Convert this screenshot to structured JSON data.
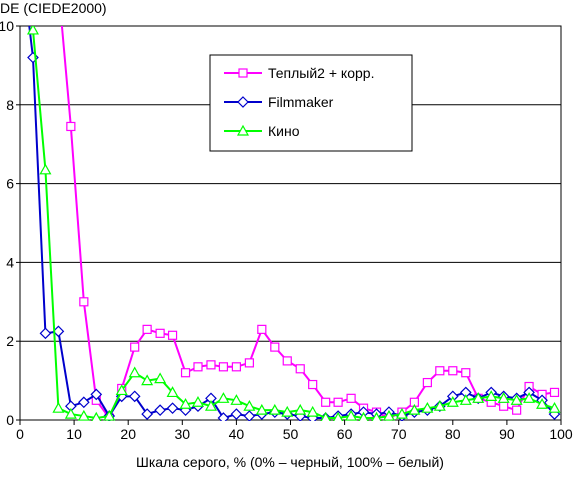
{
  "chart_data": {
    "type": "line",
    "title": "DE (CIEDE2000)",
    "xlabel": "Шкала серого, % (0% – черный, 100% – белый)",
    "ylabel": "",
    "xlim": [
      0,
      100
    ],
    "ylim": [
      0,
      10
    ],
    "xticks": [
      "0",
      "10",
      "20",
      "30",
      "40",
      "50",
      "60",
      "70",
      "80",
      "90",
      "100"
    ],
    "yticks": [
      "0",
      "2",
      "4",
      "6",
      "8",
      "10"
    ],
    "grid": "horizontal",
    "legend_position": "top-right",
    "series": [
      {
        "name": "Теплый2 + корр.",
        "color": "#ff00ff",
        "marker": "square",
        "x": [
          4.7,
          7.1,
          9.4,
          11.8,
          14.1,
          16.5,
          18.8,
          21.2,
          23.5,
          25.9,
          28.2,
          30.6,
          32.9,
          35.3,
          37.6,
          40.0,
          42.4,
          44.7,
          47.1,
          49.4,
          51.8,
          54.1,
          56.5,
          58.8,
          61.2,
          63.5,
          65.9,
          68.2,
          70.6,
          72.9,
          75.3,
          77.6,
          80.0,
          82.4,
          84.7,
          87.1,
          89.4,
          91.8,
          94.1,
          96.5,
          98.8
        ],
        "y": [
          14.0,
          11.0,
          7.45,
          3.0,
          0.5,
          0.05,
          0.8,
          1.85,
          2.3,
          2.2,
          2.15,
          1.2,
          1.35,
          1.4,
          1.35,
          1.35,
          1.45,
          2.3,
          1.85,
          1.5,
          1.3,
          0.9,
          0.45,
          0.45,
          0.55,
          0.3,
          0.2,
          0.05,
          0.2,
          0.45,
          0.95,
          1.25,
          1.25,
          1.2,
          0.55,
          0.45,
          0.35,
          0.25,
          0.85,
          0.65,
          0.7
        ]
      },
      {
        "name": "Filmmaker",
        "color": "#0000cc",
        "marker": "diamond",
        "x": [
          0.0,
          2.4,
          4.7,
          7.1,
          9.4,
          11.8,
          14.1,
          16.5,
          18.8,
          21.2,
          23.5,
          25.9,
          28.2,
          30.6,
          32.9,
          35.3,
          37.6,
          40.0,
          42.4,
          44.7,
          47.1,
          49.4,
          51.8,
          54.1,
          56.5,
          58.8,
          61.2,
          63.5,
          65.9,
          68.2,
          70.6,
          72.9,
          75.3,
          77.6,
          80.0,
          82.4,
          84.7,
          87.1,
          89.4,
          91.8,
          94.1,
          96.5,
          98.8
        ],
        "y": [
          12.0,
          9.2,
          2.2,
          2.25,
          0.35,
          0.45,
          0.65,
          0.1,
          0.6,
          0.6,
          0.15,
          0.25,
          0.3,
          0.25,
          0.35,
          0.55,
          0.05,
          0.15,
          0.1,
          0.15,
          0.2,
          0.15,
          0.1,
          0.05,
          0.05,
          0.1,
          0.15,
          0.2,
          0.15,
          0.2,
          0.1,
          0.2,
          0.25,
          0.35,
          0.6,
          0.7,
          0.55,
          0.7,
          0.6,
          0.55,
          0.7,
          0.5,
          0.15
        ]
      },
      {
        "name": "Кино",
        "color": "#00ff00",
        "marker": "triangle",
        "x": [
          0.0,
          2.4,
          4.7,
          7.1,
          9.4,
          11.8,
          14.1,
          16.5,
          18.8,
          21.2,
          23.5,
          25.9,
          28.2,
          30.6,
          32.9,
          35.3,
          37.6,
          40.0,
          42.4,
          44.7,
          47.1,
          49.4,
          51.8,
          54.1,
          56.5,
          58.8,
          61.2,
          63.5,
          65.9,
          68.2,
          70.6,
          72.9,
          75.3,
          77.6,
          80.0,
          82.4,
          84.7,
          87.1,
          89.4,
          91.8,
          94.1,
          96.5,
          98.8
        ],
        "y": [
          14.0,
          9.9,
          6.35,
          0.3,
          0.15,
          0.1,
          0.05,
          0.1,
          0.75,
          1.2,
          1.0,
          1.05,
          0.7,
          0.4,
          0.45,
          0.35,
          0.55,
          0.5,
          0.35,
          0.25,
          0.25,
          0.2,
          0.25,
          0.2,
          0.05,
          0.05,
          0.1,
          0.05,
          0.05,
          0.1,
          0.15,
          0.25,
          0.3,
          0.35,
          0.45,
          0.5,
          0.55,
          0.6,
          0.55,
          0.5,
          0.55,
          0.4,
          0.3
        ]
      }
    ]
  }
}
